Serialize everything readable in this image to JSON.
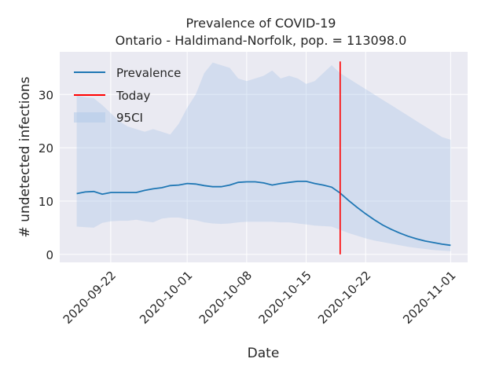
{
  "chart_data": {
    "type": "line",
    "title": "Prevalence of COVID-19",
    "subtitle": "Ontario - Haldimand-Norfolk, pop. = 113098.0",
    "xlabel": "Date",
    "ylabel": "# undetected infections",
    "x_range": [
      "2020-09-16",
      "2020-11-03"
    ],
    "ylim": [
      -1.5,
      38
    ],
    "x_ticks": [
      "2020-09-22",
      "2020-10-01",
      "2020-10-08",
      "2020-10-15",
      "2020-10-22",
      "2020-11-01"
    ],
    "y_ticks": [
      0,
      10,
      20,
      30
    ],
    "grid": true,
    "legend_position": "top-left",
    "legend": [
      "Prevalence",
      "Today",
      "95CI"
    ],
    "colors": {
      "prevalence": "#1f77b4",
      "today": "#ff0000",
      "ci": "#aec7e8",
      "plot_bg": "#eaeaf2",
      "grid": "#ffffff"
    },
    "today": "2020-10-19",
    "series": [
      {
        "name": "Prevalence",
        "x": [
          "2020-09-18",
          "2020-09-19",
          "2020-09-20",
          "2020-09-21",
          "2020-09-22",
          "2020-09-23",
          "2020-09-24",
          "2020-09-25",
          "2020-09-26",
          "2020-09-27",
          "2020-09-28",
          "2020-09-29",
          "2020-09-30",
          "2020-10-01",
          "2020-10-02",
          "2020-10-03",
          "2020-10-04",
          "2020-10-05",
          "2020-10-06",
          "2020-10-07",
          "2020-10-08",
          "2020-10-09",
          "2020-10-10",
          "2020-10-11",
          "2020-10-12",
          "2020-10-13",
          "2020-10-14",
          "2020-10-15",
          "2020-10-16",
          "2020-10-17",
          "2020-10-18",
          "2020-10-19",
          "2020-10-20",
          "2020-10-21",
          "2020-10-22",
          "2020-10-23",
          "2020-10-24",
          "2020-10-25",
          "2020-10-26",
          "2020-10-27",
          "2020-10-28",
          "2020-10-29",
          "2020-10-30",
          "2020-10-31",
          "2020-11-01"
        ],
        "y": [
          11.4,
          11.7,
          11.8,
          11.3,
          11.6,
          11.6,
          11.6,
          11.6,
          12.0,
          12.3,
          12.5,
          12.9,
          13.0,
          13.3,
          13.2,
          12.9,
          12.7,
          12.7,
          13.0,
          13.5,
          13.6,
          13.6,
          13.4,
          13.0,
          13.3,
          13.5,
          13.7,
          13.7,
          13.3,
          13.0,
          12.6,
          11.5,
          10.1,
          8.8,
          7.6,
          6.5,
          5.5,
          4.7,
          4.0,
          3.4,
          2.9,
          2.5,
          2.2,
          1.9,
          1.7
        ]
      },
      {
        "name": "95CI",
        "x": [
          "2020-09-18",
          "2020-09-19",
          "2020-09-20",
          "2020-09-21",
          "2020-09-22",
          "2020-09-23",
          "2020-09-24",
          "2020-09-25",
          "2020-09-26",
          "2020-09-27",
          "2020-09-28",
          "2020-09-29",
          "2020-09-30",
          "2020-10-01",
          "2020-10-02",
          "2020-10-03",
          "2020-10-04",
          "2020-10-05",
          "2020-10-06",
          "2020-10-07",
          "2020-10-08",
          "2020-10-09",
          "2020-10-10",
          "2020-10-11",
          "2020-10-12",
          "2020-10-13",
          "2020-10-14",
          "2020-10-15",
          "2020-10-16",
          "2020-10-17",
          "2020-10-18",
          "2020-10-19",
          "2020-10-20",
          "2020-10-21",
          "2020-10-22",
          "2020-10-23",
          "2020-10-24",
          "2020-10-25",
          "2020-10-26",
          "2020-10-27",
          "2020-10-28",
          "2020-10-29",
          "2020-10-30",
          "2020-10-31",
          "2020-11-01"
        ],
        "lower": [
          5.2,
          5.1,
          5.0,
          5.9,
          6.2,
          6.3,
          6.3,
          6.5,
          6.2,
          6.0,
          6.7,
          6.9,
          6.9,
          6.6,
          6.4,
          6.0,
          5.8,
          5.7,
          5.8,
          6.0,
          6.1,
          6.1,
          6.1,
          6.1,
          6.0,
          6.0,
          5.8,
          5.6,
          5.4,
          5.3,
          5.2,
          4.6,
          4.0,
          3.5,
          3.0,
          2.6,
          2.3,
          2.0,
          1.7,
          1.4,
          1.2,
          1.0,
          0.8,
          0.7,
          0.6
        ],
        "upper": [
          29.8,
          29.5,
          29.3,
          28.0,
          26.5,
          25.0,
          24.0,
          23.5,
          23.0,
          23.5,
          23.0,
          22.5,
          24.5,
          27.5,
          30.0,
          34.0,
          36.0,
          35.5,
          35.0,
          33.0,
          32.5,
          33.0,
          33.5,
          34.5,
          33.0,
          33.5,
          33.0,
          32.0,
          32.5,
          34.0,
          35.5,
          34.0,
          33.0,
          32.0,
          31.0,
          30.0,
          29.0,
          28.0,
          27.0,
          26.0,
          25.0,
          24.0,
          23.0,
          22.0,
          21.5
        ]
      }
    ]
  }
}
